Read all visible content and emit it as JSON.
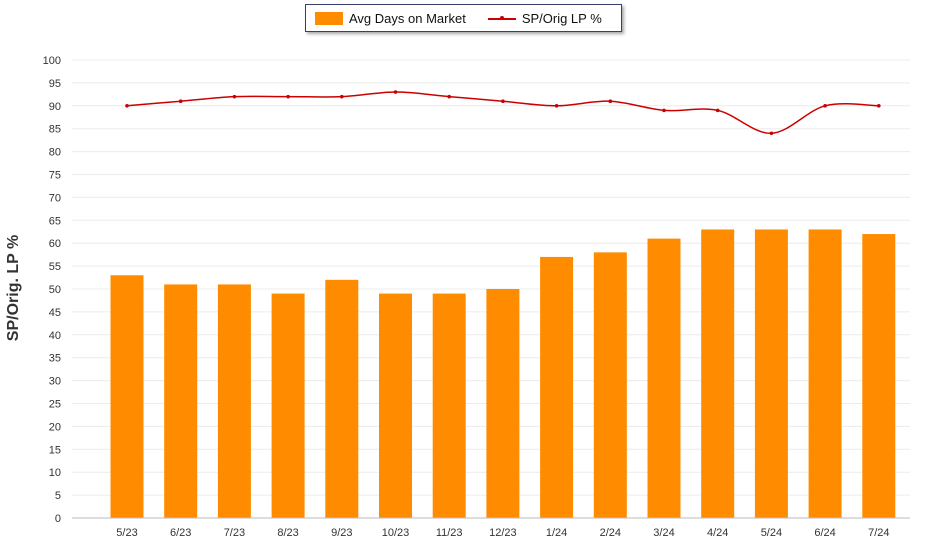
{
  "chart_data": {
    "type": "bar",
    "categories": [
      "5/23",
      "6/23",
      "7/23",
      "8/23",
      "9/23",
      "10/23",
      "11/23",
      "12/23",
      "1/24",
      "2/24",
      "3/24",
      "4/24",
      "5/24",
      "6/24",
      "7/24"
    ],
    "series": [
      {
        "name": "Avg Days on Market",
        "type": "bar",
        "color": "#ff8c00",
        "values": [
          53,
          51,
          51,
          49,
          52,
          49,
          49,
          50,
          57,
          58,
          61,
          63,
          63,
          63,
          62
        ]
      },
      {
        "name": "SP/Orig LP %",
        "type": "line",
        "color": "#cc0000",
        "values": [
          90,
          91,
          92,
          92,
          92,
          93,
          92,
          91,
          90,
          91,
          89,
          89,
          84,
          90,
          90
        ]
      }
    ],
    "ylabel": "SP/Orig. LP %",
    "ylim": [
      0,
      100
    ],
    "yticks": [
      0,
      5,
      10,
      15,
      20,
      25,
      30,
      35,
      40,
      45,
      50,
      55,
      60,
      65,
      70,
      75,
      80,
      85,
      90,
      95,
      100
    ],
    "grid": true,
    "legend": "top-center"
  }
}
